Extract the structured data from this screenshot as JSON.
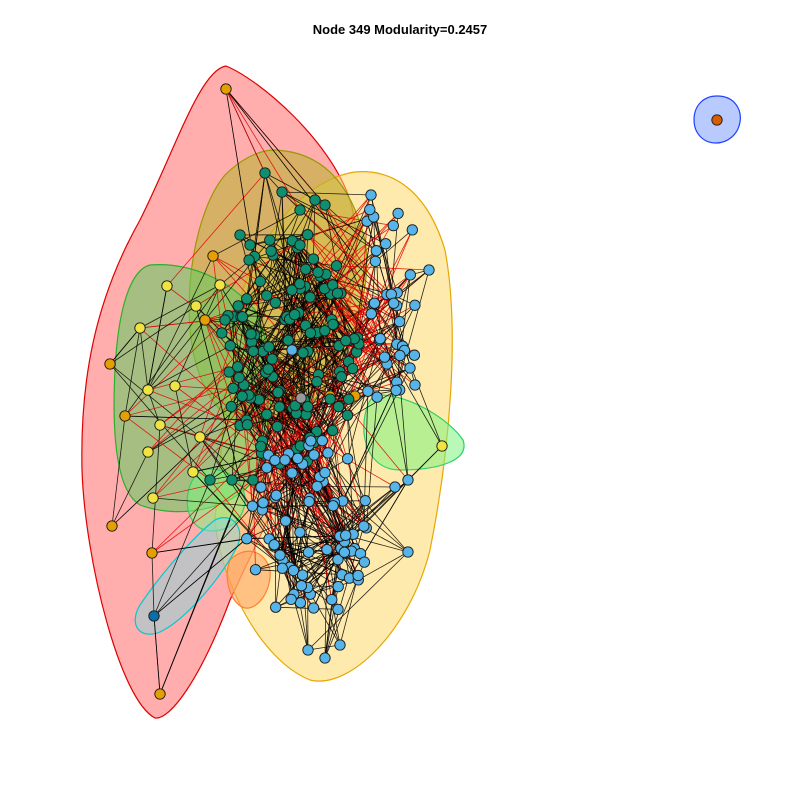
{
  "title": "Node 349 Modularity=0.2457",
  "communities": [
    {
      "name": "red-community",
      "fill": "#ff6a6a",
      "stroke": "#e00000"
    },
    {
      "name": "olive-community",
      "fill": "#b5b52a",
      "stroke": "#9a9a00"
    },
    {
      "name": "gold-community",
      "fill": "#ffd86b",
      "stroke": "#e6a800"
    },
    {
      "name": "green-community",
      "fill": "#5fcc5f",
      "stroke": "#2bb02b"
    },
    {
      "name": "lightgreen-community",
      "fill": "#7df27d",
      "stroke": "#2fd06a"
    },
    {
      "name": "cyan-community",
      "fill": "#8fd3d8",
      "stroke": "#00c8d0"
    },
    {
      "name": "orange-community",
      "fill": "#ffa060",
      "stroke": "#ff8030"
    },
    {
      "name": "blue-community",
      "fill": "#7f9fff",
      "stroke": "#2040ff"
    }
  ],
  "node_colors": {
    "teal": "#0f8f6f",
    "skyblue": "#56b4e9",
    "orange": "#e69f00",
    "yellow": "#f0e442",
    "darkblue": "#0b6ea8",
    "vermillion": "#d55e00",
    "grey": "#999999"
  },
  "edge_colors": {
    "black": "#000000",
    "red": "#e00000"
  }
}
